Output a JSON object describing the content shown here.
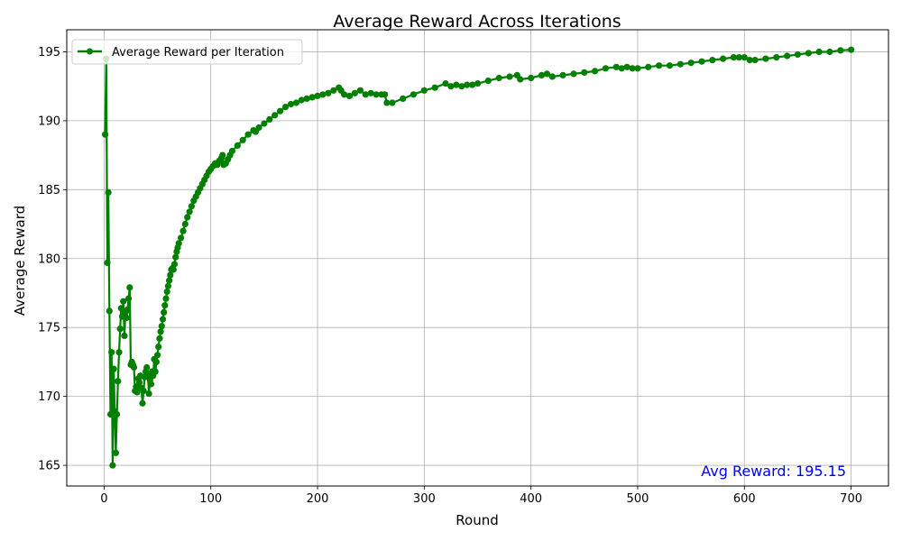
{
  "chart_data": {
    "type": "line",
    "title": "Average Reward Across Iterations",
    "xlabel": "Round",
    "ylabel": "Average Reward",
    "xlim": [
      -35,
      735
    ],
    "ylim": [
      163.5,
      196.6
    ],
    "x_ticks": [
      0,
      100,
      200,
      300,
      400,
      500,
      600,
      700
    ],
    "y_ticks": [
      165,
      170,
      175,
      180,
      185,
      190,
      195
    ],
    "grid": true,
    "legend_position": "top-left",
    "annotation": "Avg Reward: 195.15",
    "annotation_color": "#0000ff",
    "series_color": "#008000",
    "series": [
      {
        "name": "Average Reward per Iteration",
        "marker": "circle",
        "points": [
          [
            1,
            189.0
          ],
          [
            2,
            194.5
          ],
          [
            3,
            179.7
          ],
          [
            4,
            184.8
          ],
          [
            5,
            176.2
          ],
          [
            6,
            168.7
          ],
          [
            7,
            173.2
          ],
          [
            8,
            165.0
          ],
          [
            9,
            172.0
          ],
          [
            10,
            168.9
          ],
          [
            11,
            165.9
          ],
          [
            12,
            168.7
          ],
          [
            13,
            171.1
          ],
          [
            14,
            173.2
          ],
          [
            15,
            174.9
          ],
          [
            16,
            176.4
          ],
          [
            17,
            175.8
          ],
          [
            18,
            176.9
          ],
          [
            19,
            174.4
          ],
          [
            20,
            176.1
          ],
          [
            21,
            175.7
          ],
          [
            22,
            176.3
          ],
          [
            23,
            177.1
          ],
          [
            24,
            177.9
          ],
          [
            25,
            172.3
          ],
          [
            26,
            172.5
          ],
          [
            27,
            172.3
          ],
          [
            28,
            172.1
          ],
          [
            29,
            170.4
          ],
          [
            30,
            170.7
          ],
          [
            31,
            170.3
          ],
          [
            32,
            171.3
          ],
          [
            33,
            171.0
          ],
          [
            34,
            171.5
          ],
          [
            35,
            170.6
          ],
          [
            36,
            169.5
          ],
          [
            37,
            170.4
          ],
          [
            38,
            171.4
          ],
          [
            39,
            171.8
          ],
          [
            40,
            172.1
          ],
          [
            41,
            171.5
          ],
          [
            42,
            170.2
          ],
          [
            43,
            171.2
          ],
          [
            44,
            170.9
          ],
          [
            45,
            171.8
          ],
          [
            46,
            171.5
          ],
          [
            47,
            172.7
          ],
          [
            48,
            171.8
          ],
          [
            49,
            172.5
          ],
          [
            50,
            173.0
          ],
          [
            51,
            173.6
          ],
          [
            52,
            174.2
          ],
          [
            53,
            174.7
          ],
          [
            54,
            175.1
          ],
          [
            55,
            175.6
          ],
          [
            56,
            176.1
          ],
          [
            57,
            176.6
          ],
          [
            58,
            177.1
          ],
          [
            59,
            177.6
          ],
          [
            60,
            178.0
          ],
          [
            61,
            178.4
          ],
          [
            62,
            178.8
          ],
          [
            63,
            179.2
          ],
          [
            64,
            179.3
          ],
          [
            65,
            179.2
          ],
          [
            66,
            179.6
          ],
          [
            67,
            180.1
          ],
          [
            68,
            180.5
          ],
          [
            69,
            180.8
          ],
          [
            70,
            181.1
          ],
          [
            72,
            181.5
          ],
          [
            74,
            182.0
          ],
          [
            76,
            182.5
          ],
          [
            78,
            183.0
          ],
          [
            80,
            183.4
          ],
          [
            82,
            183.8
          ],
          [
            84,
            184.2
          ],
          [
            86,
            184.5
          ],
          [
            88,
            184.8
          ],
          [
            90,
            185.1
          ],
          [
            92,
            185.4
          ],
          [
            94,
            185.7
          ],
          [
            96,
            186.0
          ],
          [
            98,
            186.3
          ],
          [
            100,
            186.5
          ],
          [
            102,
            186.7
          ],
          [
            104,
            186.9
          ],
          [
            106,
            186.8
          ],
          [
            108,
            187.1
          ],
          [
            110,
            187.3
          ],
          [
            111,
            187.5
          ],
          [
            112,
            186.8
          ],
          [
            114,
            186.9
          ],
          [
            116,
            187.2
          ],
          [
            118,
            187.5
          ],
          [
            120,
            187.8
          ],
          [
            125,
            188.2
          ],
          [
            130,
            188.6
          ],
          [
            135,
            189.0
          ],
          [
            140,
            189.3
          ],
          [
            142,
            189.2
          ],
          [
            145,
            189.5
          ],
          [
            150,
            189.8
          ],
          [
            155,
            190.1
          ],
          [
            160,
            190.4
          ],
          [
            165,
            190.7
          ],
          [
            170,
            191.0
          ],
          [
            175,
            191.2
          ],
          [
            180,
            191.3
          ],
          [
            185,
            191.5
          ],
          [
            190,
            191.6
          ],
          [
            195,
            191.7
          ],
          [
            200,
            191.8
          ],
          [
            205,
            191.9
          ],
          [
            210,
            192.0
          ],
          [
            215,
            192.2
          ],
          [
            220,
            192.4
          ],
          [
            222,
            192.2
          ],
          [
            225,
            191.9
          ],
          [
            230,
            191.8
          ],
          [
            235,
            192.0
          ],
          [
            240,
            192.2
          ],
          [
            245,
            191.9
          ],
          [
            250,
            192.0
          ],
          [
            255,
            191.9
          ],
          [
            260,
            191.9
          ],
          [
            263,
            191.9
          ],
          [
            265,
            191.3
          ],
          [
            270,
            191.3
          ],
          [
            280,
            191.6
          ],
          [
            290,
            191.9
          ],
          [
            300,
            192.2
          ],
          [
            310,
            192.4
          ],
          [
            320,
            192.7
          ],
          [
            325,
            192.5
          ],
          [
            330,
            192.6
          ],
          [
            335,
            192.5
          ],
          [
            340,
            192.6
          ],
          [
            345,
            192.6
          ],
          [
            350,
            192.7
          ],
          [
            360,
            192.9
          ],
          [
            370,
            193.1
          ],
          [
            380,
            193.2
          ],
          [
            387,
            193.3
          ],
          [
            390,
            193.0
          ],
          [
            400,
            193.1
          ],
          [
            410,
            193.3
          ],
          [
            415,
            193.4
          ],
          [
            420,
            193.2
          ],
          [
            430,
            193.3
          ],
          [
            440,
            193.4
          ],
          [
            450,
            193.5
          ],
          [
            460,
            193.6
          ],
          [
            470,
            193.8
          ],
          [
            480,
            193.9
          ],
          [
            485,
            193.8
          ],
          [
            490,
            193.9
          ],
          [
            495,
            193.8
          ],
          [
            500,
            193.8
          ],
          [
            510,
            193.9
          ],
          [
            520,
            194.0
          ],
          [
            530,
            194.0
          ],
          [
            540,
            194.1
          ],
          [
            550,
            194.2
          ],
          [
            560,
            194.3
          ],
          [
            570,
            194.4
          ],
          [
            580,
            194.5
          ],
          [
            590,
            194.6
          ],
          [
            595,
            194.6
          ],
          [
            600,
            194.6
          ],
          [
            605,
            194.4
          ],
          [
            610,
            194.4
          ],
          [
            620,
            194.5
          ],
          [
            630,
            194.6
          ],
          [
            640,
            194.7
          ],
          [
            650,
            194.8
          ],
          [
            660,
            194.9
          ],
          [
            670,
            195.0
          ],
          [
            680,
            195.0
          ],
          [
            690,
            195.1
          ],
          [
            700,
            195.15
          ]
        ]
      }
    ]
  }
}
